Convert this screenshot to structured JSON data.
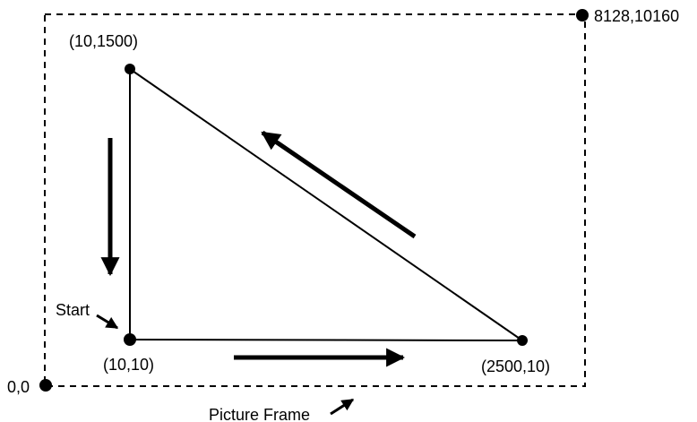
{
  "diagram": {
    "frame_top_right_label": "8128,10160",
    "frame_origin_label": "0,0",
    "frame_caption": "Picture Frame",
    "start_label": "Start",
    "vertices": {
      "top": "(10,1500)",
      "bottom_left": "(10,10)",
      "bottom_right": "(2500,10)"
    }
  }
}
